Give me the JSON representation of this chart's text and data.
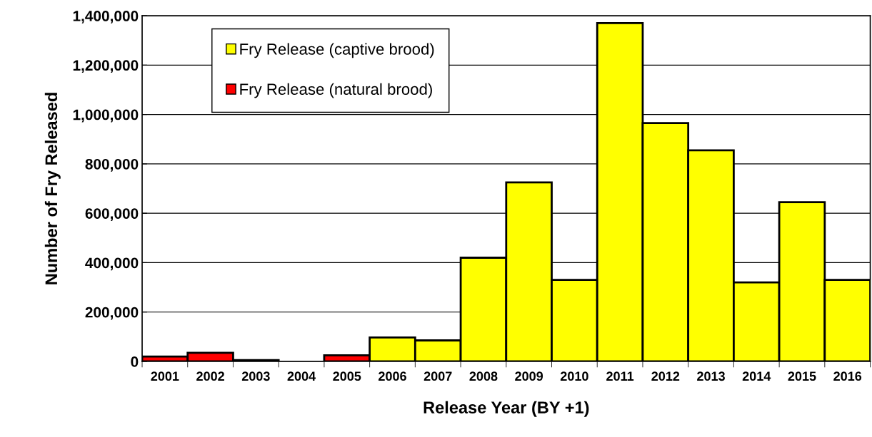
{
  "chart_data": {
    "type": "bar",
    "stacked": true,
    "xlabel": "Release Year (BY +1)",
    "ylabel": "Number of Fry Released",
    "categories": [
      "2001",
      "2002",
      "2003",
      "2004",
      "2005",
      "2006",
      "2007",
      "2008",
      "2009",
      "2010",
      "2011",
      "2012",
      "2013",
      "2014",
      "2015",
      "2016"
    ],
    "series": [
      {
        "name": "Fry Release (natural brood)",
        "color": "#ff0000",
        "values": [
          20000,
          35000,
          5000,
          null,
          25000,
          null,
          null,
          null,
          null,
          null,
          null,
          null,
          null,
          null,
          null,
          null
        ]
      },
      {
        "name": "Fry Release (captive brood)",
        "color": "#ffff00",
        "values": [
          null,
          null,
          null,
          null,
          null,
          97000,
          85000,
          420000,
          725000,
          330000,
          1370000,
          965000,
          855000,
          320000,
          645000,
          330000
        ]
      }
    ],
    "ylim": [
      0,
      1400000
    ],
    "yticks": [
      {
        "value": 0,
        "label": "0"
      },
      {
        "value": 200000,
        "label": "200,000"
      },
      {
        "value": 400000,
        "label": "400,000"
      },
      {
        "value": 600000,
        "label": "600,000"
      },
      {
        "value": 800000,
        "label": "800,000"
      },
      {
        "value": 1000000,
        "label": "1,000,000"
      },
      {
        "value": 1200000,
        "label": "1,200,000"
      },
      {
        "value": 1400000,
        "label": "1,400,000"
      }
    ],
    "grid": "y",
    "legend": "top left"
  }
}
